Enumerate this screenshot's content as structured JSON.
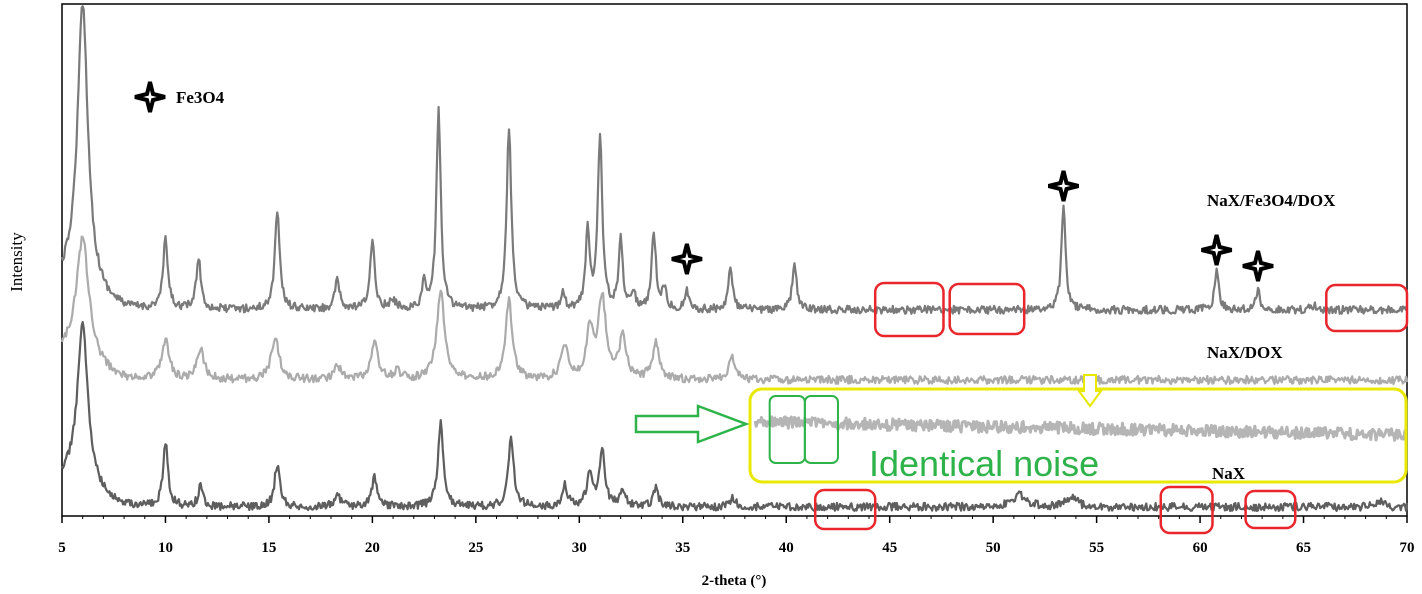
{
  "chart_data": {
    "type": "line",
    "xlabel": "2-theta (°)",
    "ylabel": "Intensity",
    "xlim": [
      5,
      70
    ],
    "x_ticks": [
      5,
      10,
      15,
      20,
      25,
      30,
      35,
      40,
      45,
      50,
      55,
      60,
      65,
      70
    ],
    "y_ticks_labeled": false,
    "grid": false,
    "legend": {
      "marker": "four-point-star",
      "label": "Fe3O4",
      "placement": "top-left"
    },
    "series": [
      {
        "name": "NaX/Fe3O4/DOX",
        "color": "#7a7a7a",
        "baseline": 310,
        "noise": 4,
        "peaks": [
          [
            6.0,
            280,
            0.3
          ],
          [
            10.0,
            68,
            0.14
          ],
          [
            11.6,
            52,
            0.13
          ],
          [
            15.4,
            100,
            0.14
          ],
          [
            18.3,
            28,
            0.14
          ],
          [
            20.0,
            66,
            0.14
          ],
          [
            21.0,
            8,
            0.2
          ],
          [
            22.5,
            25,
            0.12
          ],
          [
            23.2,
            198,
            0.13
          ],
          [
            26.6,
            180,
            0.14
          ],
          [
            29.2,
            18,
            0.12
          ],
          [
            30.4,
            76,
            0.12
          ],
          [
            31.0,
            175,
            0.13
          ],
          [
            32.0,
            68,
            0.12
          ],
          [
            32.6,
            18,
            0.12
          ],
          [
            33.6,
            78,
            0.12
          ],
          [
            34.1,
            22,
            0.12
          ],
          [
            35.2,
            18,
            0.12
          ],
          [
            37.3,
            40,
            0.13
          ],
          [
            40.4,
            48,
            0.12
          ],
          [
            53.4,
            105,
            0.12
          ],
          [
            60.8,
            40,
            0.12
          ],
          [
            62.8,
            20,
            0.12
          ],
          [
            65.5,
            4,
            0.2
          ]
        ]
      },
      {
        "name": "NaX/DOX",
        "color": "#ababab",
        "baseline": 380,
        "noise": 4,
        "peaks": [
          [
            6.0,
            115,
            0.35
          ],
          [
            10.0,
            38,
            0.22
          ],
          [
            11.7,
            30,
            0.2
          ],
          [
            15.3,
            43,
            0.22
          ],
          [
            18.3,
            14,
            0.2
          ],
          [
            20.1,
            38,
            0.2
          ],
          [
            21.2,
            8,
            0.2
          ],
          [
            23.3,
            90,
            0.22
          ],
          [
            26.6,
            78,
            0.2
          ],
          [
            29.3,
            35,
            0.2
          ],
          [
            30.5,
            48,
            0.2
          ],
          [
            31.1,
            82,
            0.22
          ],
          [
            32.1,
            42,
            0.2
          ],
          [
            33.7,
            36,
            0.2
          ],
          [
            37.4,
            22,
            0.2
          ]
        ]
      },
      {
        "name": "NaX",
        "color": "#5e5e5e",
        "baseline": 507,
        "noise": 4,
        "peaks": [
          [
            6.0,
            155,
            0.3
          ],
          [
            10.0,
            65,
            0.14
          ],
          [
            11.7,
            20,
            0.14
          ],
          [
            15.4,
            43,
            0.15
          ],
          [
            18.3,
            14,
            0.15
          ],
          [
            20.1,
            31,
            0.14
          ],
          [
            23.3,
            83,
            0.16
          ],
          [
            26.7,
            68,
            0.16
          ],
          [
            29.3,
            22,
            0.15
          ],
          [
            30.5,
            35,
            0.15
          ],
          [
            31.1,
            58,
            0.16
          ],
          [
            32.1,
            18,
            0.15
          ],
          [
            33.7,
            18,
            0.15
          ],
          [
            37.4,
            10,
            0.15
          ],
          [
            51.3,
            12,
            0.4
          ],
          [
            53.8,
            10,
            0.3
          ],
          [
            68.7,
            6,
            0.2
          ]
        ]
      },
      {
        "name": "noise-copy",
        "color": "#b5b5b5",
        "segment": [
          38.5,
          70
        ],
        "baseline_start": 422,
        "baseline_end": 435,
        "noise": 6,
        "peaks": []
      }
    ],
    "series_labels": [
      {
        "text": "NaX/Fe3O4/DOX"
      },
      {
        "text": "NaX/DOX"
      },
      {
        "text": "NaX"
      }
    ],
    "fe3o4_marker_positions_2theta": [
      35.2,
      53.4,
      60.8,
      62.8
    ],
    "annotations": {
      "text": "Identical noise",
      "text_color": "#2db34a",
      "yellow_color": "#e8e800",
      "red_color": "#e8262c",
      "green_color": "#2db34a",
      "red_regions_2theta": [
        [
          44.3,
          47.6
        ],
        [
          47.9,
          51.5
        ],
        [
          66.1,
          70.0
        ],
        [
          41.4,
          44.3
        ],
        [
          58.1,
          60.6
        ],
        [
          62.2,
          64.6
        ]
      ],
      "green_regions_2theta": [
        [
          39.2,
          40.9
        ],
        [
          40.9,
          42.5
        ]
      ]
    }
  }
}
